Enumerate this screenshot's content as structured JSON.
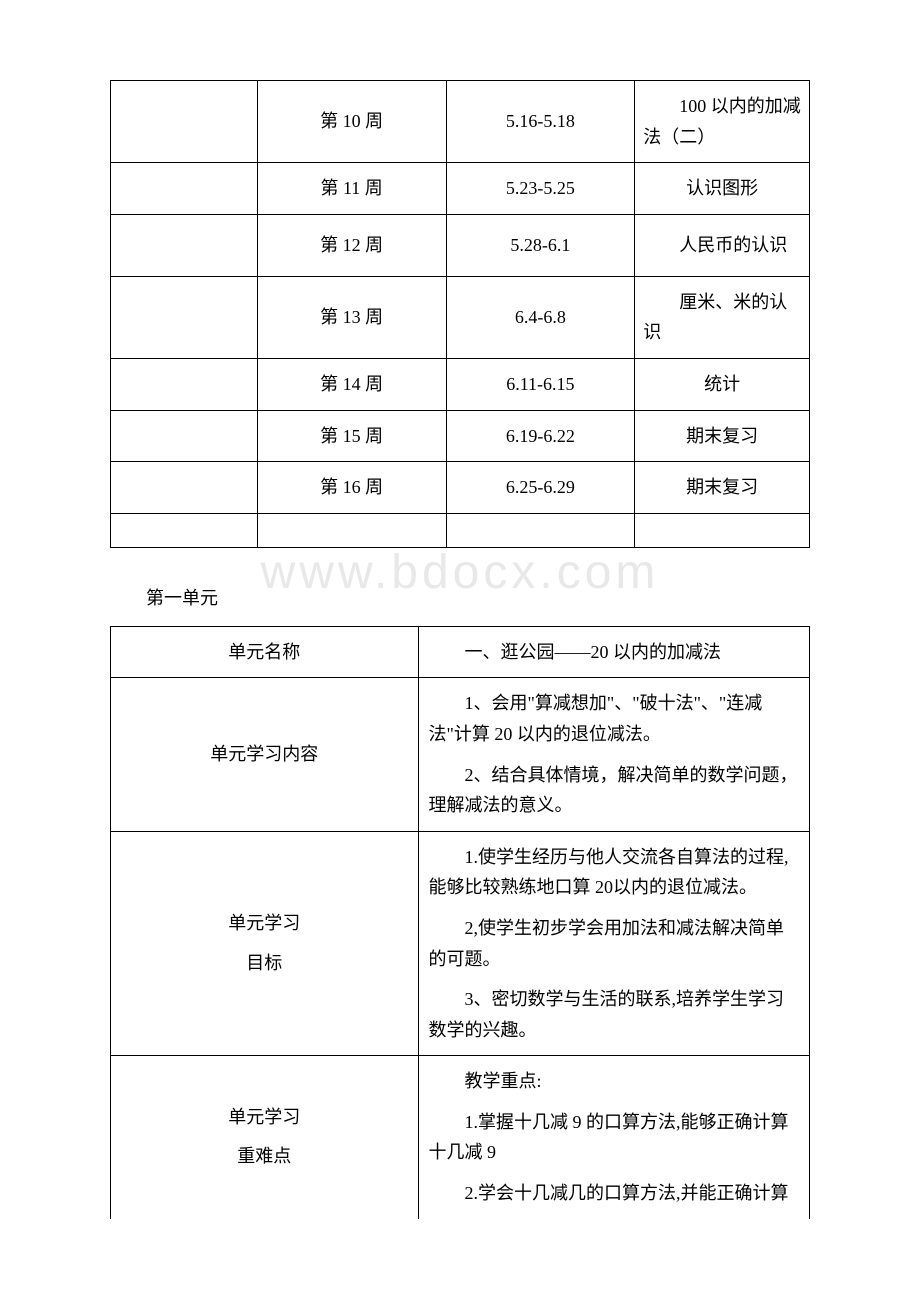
{
  "schedule": {
    "rows": [
      {
        "col1": "",
        "week": "第 10 周",
        "dates": "5.16-5.18",
        "topic": "100 以内的加减法（二）"
      },
      {
        "col1": "",
        "week": "第 11 周",
        "dates": "5.23-5.25",
        "topic": "认识图形"
      },
      {
        "col1": "",
        "week": "第 12 周",
        "dates": "5.28-6.1",
        "topic": "人民币的认识"
      },
      {
        "col1": "",
        "week": "第 13 周",
        "dates": "6.4-6.8",
        "topic": "厘米、米的认识"
      },
      {
        "col1": "",
        "week": "第 14 周",
        "dates": "6.11-6.15",
        "topic": "统计"
      },
      {
        "col1": "",
        "week": "第 15 周",
        "dates": "6.19-6.22",
        "topic": "期末复习"
      },
      {
        "col1": "",
        "week": "第 16 周",
        "dates": "6.25-6.29",
        "topic": "期末复习"
      }
    ]
  },
  "section_heading": "第一单元",
  "unit": {
    "name_label": "单元名称",
    "name_value": "一、逛公园——20 以内的加减法",
    "content_label": "单元学习内容",
    "content_p1": "1、会用\"算减想加\"、\"破十法\"、\"连减法\"计算 20 以内的退位减法。",
    "content_p2": "2、结合具体情境，解决简单的数学问题，理解减法的意义。",
    "goals_label_l1": "单元学习",
    "goals_label_l2": "目标",
    "goals_p1": "1.使学生经历与他人交流各自算法的过程,能够比较熟练地口算 20以内的退位减法。",
    "goals_p2": "2,使学生初步学会用加法和减法解决简单的可题。",
    "goals_p3": "3、密切数学与生活的联系,培养学生学习数学的兴趣。",
    "keypoints_label_l1": "单元学习",
    "keypoints_label_l2": "重难点",
    "keypoints_h": "教学重点:",
    "keypoints_p1": "1.掌握十几减 9 的口算方法,能够正确计算十几减 9",
    "keypoints_p2": "2.学会十几减几的口算方法,并能正确计算"
  },
  "watermark": "www.bdocx.com"
}
